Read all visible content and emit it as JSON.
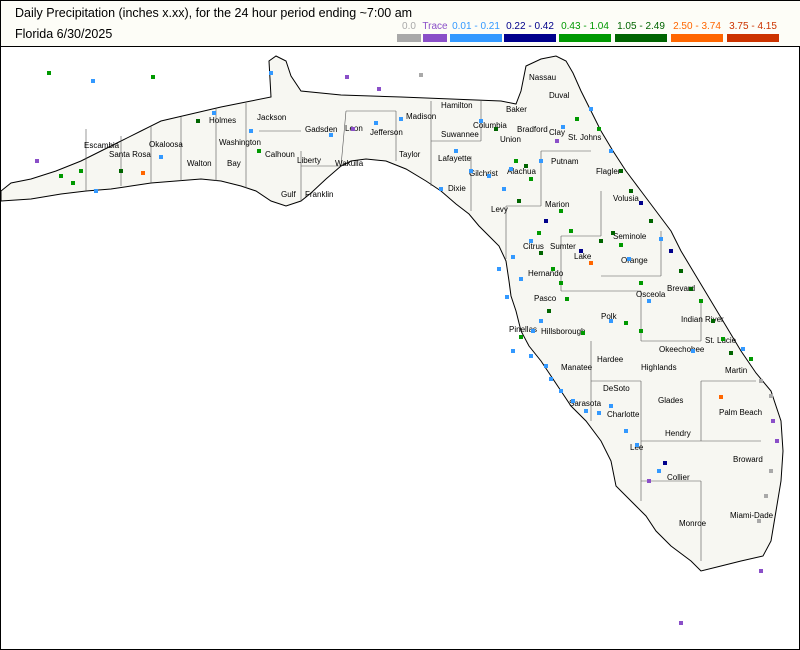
{
  "header": {
    "title": "Daily Precipitation (inches  x.xx),  for the 24 hour period ending ~7:00 am",
    "subtitle": "Florida 6/30/2025"
  },
  "legend": [
    {
      "label": "0.0",
      "color": "#a9a9a9"
    },
    {
      "label": "Trace",
      "color": "#8a4fc8"
    },
    {
      "label": "0.01 - 0.21",
      "color": "#3399ff"
    },
    {
      "label": "0.22 - 0.42",
      "color": "#00008b"
    },
    {
      "label": "0.43 - 1.04",
      "color": "#009900"
    },
    {
      "label": "1.05 - 2.49",
      "color": "#006400"
    },
    {
      "label": "2.50 - 3.74",
      "color": "#ff6600"
    },
    {
      "label": "3.75 - 4.15",
      "color": "#cc3300"
    }
  ],
  "counties": [
    "Nassau",
    "Duval",
    "Baker",
    "St. Johns",
    "Clay",
    "Bradford",
    "Union",
    "Columbia",
    "Hamilton",
    "Madison",
    "Suwannee",
    "Taylor",
    "Lafayette",
    "Dixie",
    "Gilchrist",
    "Alachua",
    "Levy",
    "Putnam",
    "Flagler",
    "Volusia",
    "Marion",
    "Citrus",
    "Sumter",
    "Lake",
    "Seminole",
    "Orange",
    "Brevard",
    "Osceola",
    "Hernando",
    "Pasco",
    "Pinellas",
    "Hillsborough",
    "Polk",
    "Indian River",
    "Okeechobee",
    "Highlands",
    "Hardee",
    "Manatee",
    "Sarasota",
    "DeSoto",
    "Charlotte",
    "Glades",
    "Martin",
    "St. Lucie",
    "Palm Beach",
    "Hendry",
    "Lee",
    "Collier",
    "Broward",
    "Miami-Dade",
    "Monroe",
    "Escambia",
    "Santa Rosa",
    "Okaloosa",
    "Walton",
    "Holmes",
    "Washington",
    "Bay",
    "Jackson",
    "Calhoun",
    "Gulf",
    "Liberty",
    "Franklin",
    "Gadsden",
    "Leon",
    "Wakulla",
    "Jefferson"
  ]
}
